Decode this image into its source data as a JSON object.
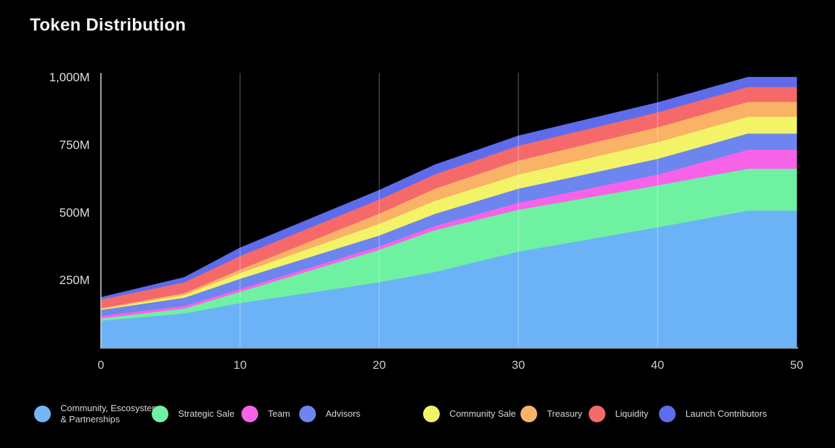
{
  "title": "Token Distribution",
  "legend": {
    "items": [
      {
        "label": "Community, Escosystem\n& Partnerships",
        "color": "#74b5f7"
      },
      {
        "label": "Strategic Sale",
        "color": "#6ef2a2"
      },
      {
        "label": "Team",
        "color": "#f763e8"
      },
      {
        "label": "Advisors",
        "color": "#6d85ee"
      },
      {
        "label": "Community Sale",
        "color": "#f3f368"
      },
      {
        "label": "Treasury",
        "color": "#f9b266"
      },
      {
        "label": "Liquidity",
        "color": "#f5696b"
      },
      {
        "label": "Launch Contributors",
        "color": "#5e6ceb"
      }
    ]
  },
  "chart_data": {
    "type": "area",
    "stacked": true,
    "title": "Token Distribution",
    "xlabel": "",
    "ylabel": "",
    "xlim": [
      0,
      50
    ],
    "ylim": [
      0,
      1000
    ],
    "x_tick_values": [
      0,
      10,
      20,
      30,
      40,
      50
    ],
    "x_tick_labels": [
      "0",
      "10",
      "20",
      "30",
      "40",
      "50"
    ],
    "y_tick_values": [
      250,
      500,
      750,
      1000
    ],
    "y_tick_labels": [
      "250M",
      "500M",
      "750M",
      "1,000M"
    ],
    "grid": "vertical-only",
    "legend_position": "bottom",
    "x": [
      0,
      6,
      10,
      20,
      24,
      30,
      40,
      46.5,
      50
    ],
    "series": [
      {
        "name": "Community, Escosystem & Partnerships",
        "color": "#6cb2f7",
        "values": [
          100,
          127,
          165,
          242,
          280,
          355,
          445,
          507,
          507
        ]
      },
      {
        "name": "Strategic Sale",
        "color": "#6ef2a2",
        "values": [
          8,
          18,
          42,
          120,
          155,
          155,
          155,
          155,
          155
        ]
      },
      {
        "name": "Team",
        "color": "#f763e8",
        "values": [
          10,
          10,
          10,
          13,
          15,
          26,
          40,
          70,
          70
        ]
      },
      {
        "name": "Advisors",
        "color": "#6d85ee",
        "values": [
          22,
          30,
          38,
          40,
          45,
          52,
          58,
          60,
          60
        ]
      },
      {
        "name": "Community Sale",
        "color": "#f3f368",
        "values": [
          3,
          10,
          21,
          43,
          48,
          52,
          62,
          62,
          62
        ]
      },
      {
        "name": "Treasury",
        "color": "#f9b266",
        "values": [
          3,
          7,
          13,
          38,
          45,
          52,
          55,
          55,
          55
        ]
      },
      {
        "name": "Liquidity",
        "color": "#f5696b",
        "values": [
          32,
          40,
          50,
          52,
          53,
          55,
          55,
          55,
          55
        ]
      },
      {
        "name": "Launch Contributors",
        "color": "#5e6ceb",
        "values": [
          8,
          18,
          30,
          34,
          35,
          36,
          36,
          36,
          36
        ]
      }
    ],
    "axis_color": "#d8d8d8",
    "bottom_axis_color": "#9b9b9b",
    "gridline_color": "rgba(255,255,255,0.4)",
    "tick_label_color": "#cccccc"
  }
}
